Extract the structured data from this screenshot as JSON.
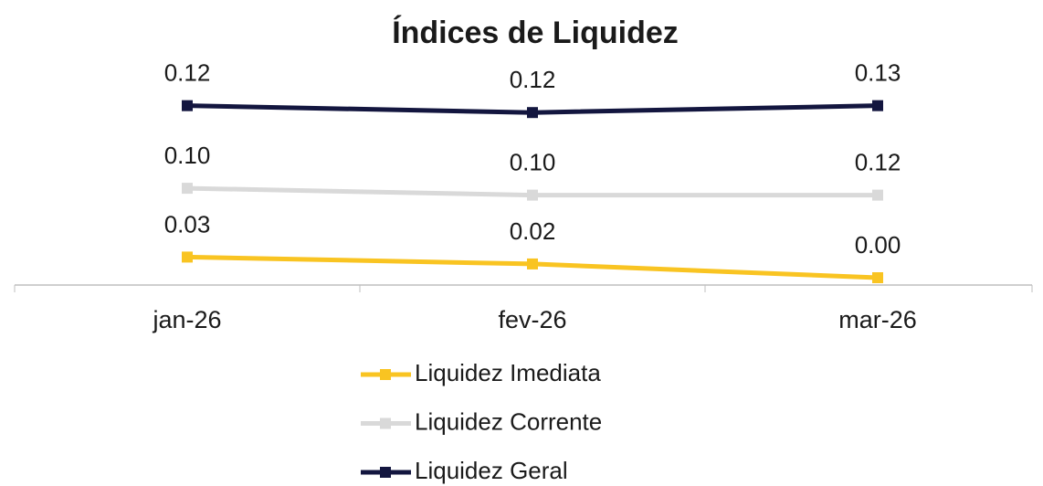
{
  "chart_data": {
    "type": "line",
    "stacked": true,
    "title": "Índices de Liquidez",
    "categories": [
      "jan-26",
      "fev-26",
      "mar-26"
    ],
    "series": [
      {
        "name": "Liquidez Imediata",
        "color": "#f9c422",
        "values": [
          0.03,
          0.02,
          0.0
        ],
        "value_labels": [
          "0.03",
          "0.02",
          "0.00"
        ]
      },
      {
        "name": "Liquidez Corrente",
        "color": "#d9d9d9",
        "values": [
          0.1,
          0.1,
          0.12
        ],
        "value_labels": [
          "0.10",
          "0.10",
          "0.12"
        ]
      },
      {
        "name": "Liquidez Geral",
        "color": "#13163f",
        "values": [
          0.12,
          0.12,
          0.13
        ],
        "value_labels": [
          "0.12",
          "0.12",
          "0.13"
        ]
      }
    ],
    "ylim": [
      0,
      0.3
    ]
  }
}
